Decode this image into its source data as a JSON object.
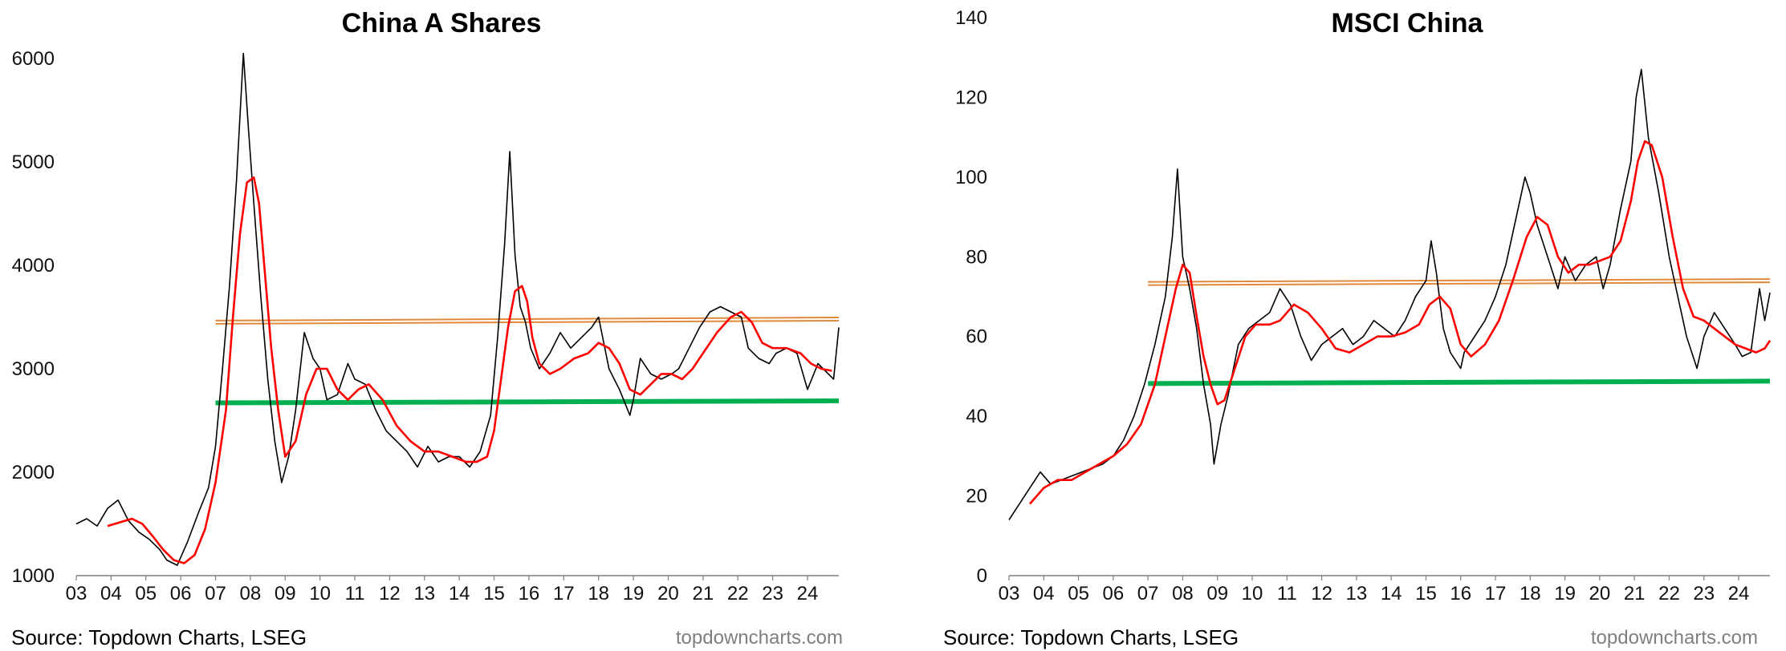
{
  "chart_data": [
    {
      "type": "line",
      "title": "China A Shares",
      "ylim": [
        1000,
        6100
      ],
      "yticks": [
        1000,
        2000,
        3000,
        4000,
        5000,
        6000
      ],
      "xlim": [
        2003.0,
        2024.9
      ],
      "xticks": [
        "03",
        "04",
        "05",
        "06",
        "07",
        "08",
        "09",
        "10",
        "11",
        "12",
        "13",
        "14",
        "15",
        "16",
        "17",
        "18",
        "19",
        "20",
        "21",
        "22",
        "23",
        "24"
      ],
      "grid": false,
      "legend": "none",
      "source": "Source: Topdown Charts, LSEG",
      "brand": "topdowncharts.com",
      "colors": {
        "price": "#000000",
        "moving_average": "#ff0000",
        "resistance": "#e0893a",
        "support": "#00b050"
      },
      "series": [
        {
          "role": "price",
          "x": [
            2003.0,
            2003.3,
            2003.6,
            2003.9,
            2004.2,
            2004.5,
            2004.8,
            2005.1,
            2005.4,
            2005.6,
            2005.9,
            2006.2,
            2006.5,
            2006.8,
            2007.0,
            2007.2,
            2007.4,
            2007.6,
            2007.8,
            2007.95,
            2008.1,
            2008.3,
            2008.5,
            2008.7,
            2008.9,
            2009.1,
            2009.3,
            2009.55,
            2009.8,
            2010.0,
            2010.2,
            2010.5,
            2010.8,
            2011.0,
            2011.3,
            2011.6,
            2011.9,
            2012.2,
            2012.5,
            2012.8,
            2013.1,
            2013.4,
            2013.7,
            2014.0,
            2014.3,
            2014.6,
            2014.9,
            2015.1,
            2015.3,
            2015.45,
            2015.6,
            2015.75,
            2015.9,
            2016.05,
            2016.3,
            2016.6,
            2016.9,
            2017.2,
            2017.5,
            2017.8,
            2018.0,
            2018.3,
            2018.6,
            2018.9,
            2019.0,
            2019.2,
            2019.5,
            2019.8,
            2020.1,
            2020.3,
            2020.6,
            2020.9,
            2021.2,
            2021.5,
            2021.8,
            2022.1,
            2022.3,
            2022.6,
            2022.9,
            2023.1,
            2023.4,
            2023.7,
            2024.0,
            2024.3,
            2024.6,
            2024.75,
            2024.9
          ],
          "y": [
            1500,
            1550,
            1480,
            1650,
            1730,
            1530,
            1420,
            1350,
            1250,
            1150,
            1100,
            1330,
            1600,
            1850,
            2250,
            3000,
            3800,
            4800,
            6050,
            5300,
            4600,
            3700,
            2900,
            2300,
            1900,
            2150,
            2600,
            3350,
            3100,
            3000,
            2700,
            2750,
            3050,
            2900,
            2850,
            2600,
            2400,
            2300,
            2200,
            2050,
            2250,
            2100,
            2150,
            2150,
            2050,
            2200,
            2550,
            3300,
            4200,
            5100,
            4100,
            3600,
            3450,
            3200,
            3000,
            3150,
            3350,
            3200,
            3300,
            3400,
            3500,
            3000,
            2800,
            2550,
            2700,
            3100,
            2950,
            2900,
            2950,
            3000,
            3200,
            3400,
            3550,
            3600,
            3550,
            3500,
            3200,
            3100,
            3050,
            3150,
            3200,
            3150,
            2800,
            3050,
            2950,
            2900,
            3400
          ]
        },
        {
          "role": "moving_average",
          "x": [
            2003.9,
            2004.3,
            2004.6,
            2004.9,
            2005.2,
            2005.5,
            2005.8,
            2006.1,
            2006.4,
            2006.7,
            2007.0,
            2007.3,
            2007.5,
            2007.7,
            2007.9,
            2008.1,
            2008.25,
            2008.4,
            2008.6,
            2008.8,
            2009.0,
            2009.3,
            2009.6,
            2009.9,
            2010.2,
            2010.5,
            2010.8,
            2011.1,
            2011.4,
            2011.8,
            2012.2,
            2012.6,
            2013.0,
            2013.4,
            2013.8,
            2014.2,
            2014.5,
            2014.8,
            2015.0,
            2015.2,
            2015.4,
            2015.6,
            2015.8,
            2015.95,
            2016.1,
            2016.3,
            2016.6,
            2016.9,
            2017.3,
            2017.7,
            2018.0,
            2018.3,
            2018.6,
            2018.9,
            2019.2,
            2019.5,
            2019.8,
            2020.1,
            2020.4,
            2020.7,
            2021.0,
            2021.4,
            2021.8,
            2022.1,
            2022.4,
            2022.7,
            2023.0,
            2023.4,
            2023.8,
            2024.1,
            2024.4,
            2024.7
          ],
          "y": [
            1480,
            1520,
            1550,
            1500,
            1380,
            1250,
            1150,
            1120,
            1200,
            1450,
            1900,
            2600,
            3500,
            4300,
            4800,
            4850,
            4600,
            4000,
            3200,
            2600,
            2150,
            2300,
            2750,
            3000,
            3000,
            2800,
            2700,
            2800,
            2850,
            2700,
            2450,
            2300,
            2200,
            2200,
            2150,
            2100,
            2100,
            2150,
            2400,
            2900,
            3400,
            3750,
            3800,
            3650,
            3300,
            3050,
            2950,
            3000,
            3100,
            3150,
            3250,
            3200,
            3050,
            2800,
            2750,
            2850,
            2950,
            2950,
            2900,
            3000,
            3150,
            3350,
            3500,
            3550,
            3450,
            3250,
            3200,
            3200,
            3150,
            3050,
            3000,
            2980
          ]
        },
        {
          "role": "resistance",
          "x": [
            2007.0,
            2024.9
          ],
          "y": [
            3450,
            3480
          ]
        },
        {
          "role": "support",
          "x": [
            2007.0,
            2024.9
          ],
          "y": [
            2670,
            2690
          ]
        }
      ]
    },
    {
      "type": "line",
      "title": "MSCI China",
      "ylim": [
        0,
        140
      ],
      "yticks": [
        0,
        20,
        40,
        60,
        80,
        100,
        120,
        140
      ],
      "xlim": [
        2003.0,
        2024.9
      ],
      "xticks": [
        "03",
        "04",
        "05",
        "06",
        "07",
        "08",
        "09",
        "10",
        "11",
        "12",
        "13",
        "14",
        "15",
        "16",
        "17",
        "18",
        "19",
        "20",
        "21",
        "22",
        "23",
        "24"
      ],
      "grid": false,
      "legend": "none",
      "source": "Source: Topdown Charts, LSEG",
      "brand": "topdowncharts.com",
      "colors": {
        "price": "#000000",
        "moving_average": "#ff0000",
        "resistance": "#e0893a",
        "support": "#00b050"
      },
      "series": [
        {
          "role": "price",
          "x": [
            2003.0,
            2003.3,
            2003.6,
            2003.9,
            2004.2,
            2004.5,
            2004.8,
            2005.1,
            2005.4,
            2005.7,
            2006.0,
            2006.3,
            2006.6,
            2006.9,
            2007.2,
            2007.5,
            2007.7,
            2007.85,
            2008.0,
            2008.2,
            2008.4,
            2008.6,
            2008.8,
            2008.9,
            2009.1,
            2009.3,
            2009.6,
            2009.9,
            2010.2,
            2010.5,
            2010.8,
            2011.1,
            2011.4,
            2011.7,
            2012.0,
            2012.3,
            2012.6,
            2012.9,
            2013.2,
            2013.5,
            2013.8,
            2014.1,
            2014.4,
            2014.7,
            2015.0,
            2015.15,
            2015.3,
            2015.5,
            2015.7,
            2016.0,
            2016.1,
            2016.4,
            2016.7,
            2017.0,
            2017.3,
            2017.6,
            2017.85,
            2018.0,
            2018.2,
            2018.5,
            2018.8,
            2019.0,
            2019.3,
            2019.6,
            2019.9,
            2020.1,
            2020.3,
            2020.6,
            2020.9,
            2021.05,
            2021.2,
            2021.4,
            2021.7,
            2022.0,
            2022.2,
            2022.5,
            2022.8,
            2023.0,
            2023.3,
            2023.6,
            2023.9,
            2024.1,
            2024.35,
            2024.6,
            2024.75,
            2024.9
          ],
          "y": [
            14,
            18,
            22,
            26,
            23,
            24,
            25,
            26,
            27,
            28,
            30,
            34,
            40,
            48,
            58,
            70,
            85,
            102,
            80,
            72,
            62,
            48,
            38,
            28,
            38,
            45,
            58,
            62,
            64,
            66,
            72,
            68,
            60,
            54,
            58,
            60,
            62,
            58,
            60,
            64,
            62,
            60,
            64,
            70,
            74,
            84,
            76,
            62,
            56,
            52,
            56,
            60,
            64,
            70,
            78,
            90,
            100,
            96,
            88,
            80,
            72,
            80,
            74,
            78,
            80,
            72,
            78,
            92,
            104,
            120,
            127,
            110,
            96,
            80,
            72,
            60,
            52,
            60,
            66,
            62,
            58,
            55,
            56,
            72,
            64,
            71
          ]
        },
        {
          "role": "moving_average",
          "x": [
            2003.6,
            2004.0,
            2004.4,
            2004.8,
            2005.2,
            2005.6,
            2006.0,
            2006.4,
            2006.8,
            2007.2,
            2007.5,
            2007.8,
            2008.0,
            2008.2,
            2008.4,
            2008.6,
            2008.8,
            2009.0,
            2009.2,
            2009.5,
            2009.8,
            2010.1,
            2010.5,
            2010.8,
            2011.2,
            2011.6,
            2012.0,
            2012.4,
            2012.8,
            2013.2,
            2013.6,
            2014.0,
            2014.4,
            2014.8,
            2015.1,
            2015.4,
            2015.7,
            2016.0,
            2016.3,
            2016.7,
            2017.1,
            2017.5,
            2017.9,
            2018.2,
            2018.5,
            2018.8,
            2019.1,
            2019.4,
            2019.7,
            2020.0,
            2020.3,
            2020.6,
            2020.9,
            2021.1,
            2021.3,
            2021.5,
            2021.8,
            2022.1,
            2022.4,
            2022.7,
            2023.0,
            2023.3,
            2023.6,
            2023.9,
            2024.2,
            2024.5,
            2024.75,
            2024.9
          ],
          "y": [
            18,
            22,
            24,
            24,
            26,
            28,
            30,
            33,
            38,
            48,
            60,
            72,
            78,
            76,
            65,
            55,
            48,
            43,
            44,
            52,
            60,
            63,
            63,
            64,
            68,
            66,
            62,
            57,
            56,
            58,
            60,
            60,
            61,
            63,
            68,
            70,
            67,
            58,
            55,
            58,
            64,
            74,
            85,
            90,
            88,
            80,
            76,
            78,
            78,
            79,
            80,
            84,
            94,
            104,
            109,
            108,
            100,
            85,
            72,
            65,
            64,
            62,
            60,
            58,
            57,
            56,
            57,
            59
          ]
        },
        {
          "role": "resistance",
          "x": [
            2007.0,
            2024.9
          ],
          "y": [
            73.3,
            74.0
          ]
        },
        {
          "role": "support",
          "x": [
            2007.0,
            2024.9
          ],
          "y": [
            48.2,
            48.8
          ]
        }
      ]
    }
  ]
}
